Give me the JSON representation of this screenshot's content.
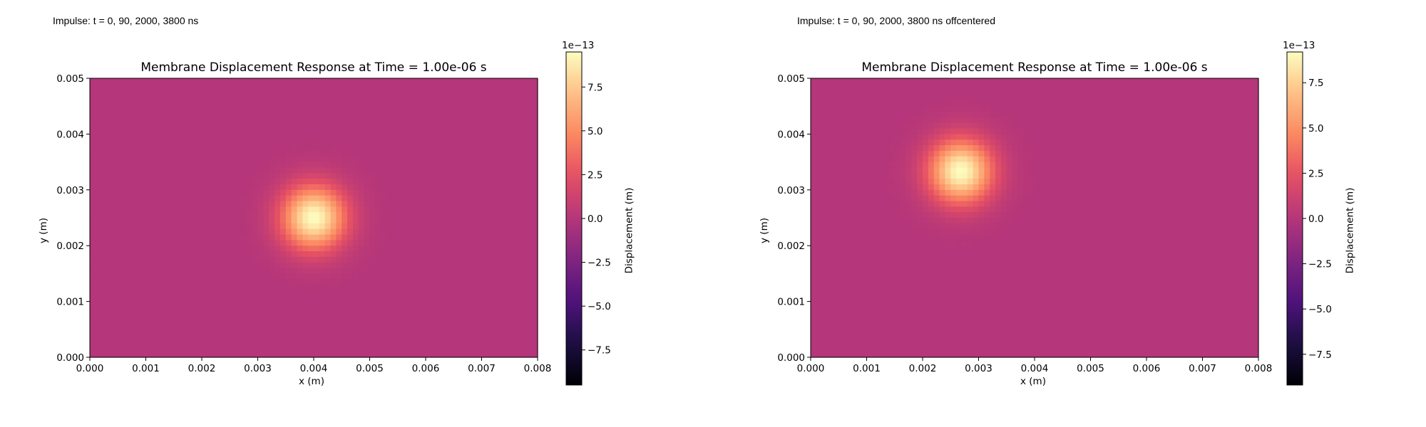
{
  "panels": [
    {
      "caption": "Impulse: t = 0, 90, 2000, 3800 ns",
      "chart_data": {
        "type": "heatmap",
        "title": "Membrane Displacement Response at Time = 1.00e-06 s",
        "xlabel": "x (m)",
        "ylabel": "y (m)",
        "xlim": [
          0,
          0.008
        ],
        "ylim": [
          0,
          0.005
        ],
        "x_ticks": [
          "0.000",
          "0.001",
          "0.002",
          "0.003",
          "0.004",
          "0.005",
          "0.006",
          "0.007",
          "0.008"
        ],
        "y_ticks": [
          "0.000",
          "0.001",
          "0.002",
          "0.003",
          "0.004",
          "0.005"
        ],
        "colormap": "magma",
        "background_value": 0.0,
        "peak": {
          "x": 0.004,
          "y": 0.0025,
          "value": 9.5e-13,
          "sigma": 0.0004
        },
        "colorbar": {
          "label": "Displacement (m)",
          "scale_text": "1e−13",
          "vmin": -9.5,
          "vmax": 9.5,
          "ticks": [
            7.5,
            5.0,
            2.5,
            0.0,
            -2.5,
            -5.0,
            -7.5
          ],
          "tick_labels": [
            "7.5",
            "5.0",
            "2.5",
            "0.0",
            "−2.5",
            "−5.0",
            "−7.5"
          ]
        }
      }
    },
    {
      "caption": "Impulse: t = 0, 90, 2000, 3800 ns offcentered",
      "chart_data": {
        "type": "heatmap",
        "title": "Membrane Displacement Response at Time = 1.00e-06 s",
        "xlabel": "x (m)",
        "ylabel": "y (m)",
        "xlim": [
          0,
          0.008
        ],
        "ylim": [
          0,
          0.005
        ],
        "x_ticks": [
          "0.000",
          "0.001",
          "0.002",
          "0.003",
          "0.004",
          "0.005",
          "0.006",
          "0.007",
          "0.008"
        ],
        "y_ticks": [
          "0.000",
          "0.001",
          "0.002",
          "0.003",
          "0.004",
          "0.005"
        ],
        "colormap": "magma",
        "background_value": 0.0,
        "peak": {
          "x": 0.00268,
          "y": 0.00333,
          "value": 9.2e-13,
          "sigma": 0.0004
        },
        "colorbar": {
          "label": "Displacement (m)",
          "scale_text": "1e−13",
          "vmin": -9.2,
          "vmax": 9.2,
          "ticks": [
            7.5,
            5.0,
            2.5,
            0.0,
            -2.5,
            -5.0,
            -7.5
          ],
          "tick_labels": [
            "7.5",
            "5.0",
            "2.5",
            "0.0",
            "−2.5",
            "−5.0",
            "−7.5"
          ]
        }
      }
    }
  ]
}
